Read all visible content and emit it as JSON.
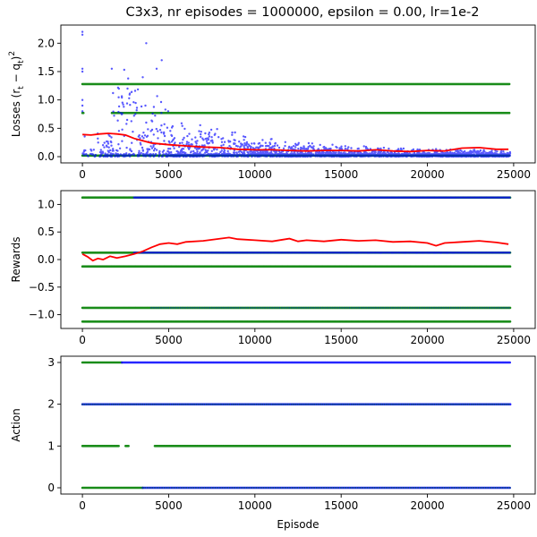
{
  "title": "C3x3, nr episodes = 1000000, epsilon = 0.00, lr=1e-2",
  "colors": {
    "blue": "#0000ff",
    "green": "#008000",
    "red": "#ff0000"
  },
  "chart_data": [
    {
      "type": "scatter",
      "name": "losses",
      "ylabel": "Losses (r_t − q_t)²",
      "ylabel_parts": {
        "main": "Losses (r",
        "sub1": "t",
        "mid": " − q",
        "sub2": "t",
        "end": ")",
        "sup": "2"
      },
      "xlim": [
        -1250,
        26250
      ],
      "ylim": [
        -0.11,
        2.32
      ],
      "xticks": [
        0,
        5000,
        10000,
        15000,
        20000,
        25000
      ],
      "xticklabels": [
        "0",
        "5000",
        "10000",
        "15000",
        "20000",
        "25000"
      ],
      "yticks": [
        0.0,
        0.5,
        1.0,
        1.5,
        2.0
      ],
      "yticklabels": [
        "0.0",
        "0.5",
        "1.0",
        "1.5",
        "2.0"
      ],
      "green_levels": [
        1.28,
        0.77,
        0.02
      ],
      "red_line": [
        [
          0,
          0.39
        ],
        [
          500,
          0.38
        ],
        [
          1000,
          0.4
        ],
        [
          1500,
          0.41
        ],
        [
          2000,
          0.4
        ],
        [
          2500,
          0.38
        ],
        [
          3000,
          0.32
        ],
        [
          3500,
          0.28
        ],
        [
          4000,
          0.24
        ],
        [
          5000,
          0.21
        ],
        [
          6000,
          0.19
        ],
        [
          7000,
          0.17
        ],
        [
          8000,
          0.16
        ],
        [
          9000,
          0.13
        ],
        [
          10000,
          0.12
        ],
        [
          11000,
          0.12
        ],
        [
          12000,
          0.11
        ],
        [
          13000,
          0.1
        ],
        [
          14000,
          0.11
        ],
        [
          15000,
          0.11
        ],
        [
          16000,
          0.1
        ],
        [
          17000,
          0.12
        ],
        [
          18000,
          0.1
        ],
        [
          19000,
          0.09
        ],
        [
          20000,
          0.11
        ],
        [
          21000,
          0.1
        ],
        [
          22000,
          0.15
        ],
        [
          23000,
          0.16
        ],
        [
          24000,
          0.13
        ],
        [
          24700,
          0.13
        ]
      ]
    },
    {
      "type": "scatter",
      "name": "rewards",
      "ylabel": "Rewards",
      "xlim": [
        -1250,
        26250
      ],
      "ylim": [
        -1.25,
        1.25
      ],
      "xticks": [
        0,
        5000,
        10000,
        15000,
        20000,
        25000
      ],
      "xticklabels": [
        "0",
        "5000",
        "10000",
        "15000",
        "20000",
        "25000"
      ],
      "yticks": [
        -1.0,
        -0.5,
        0.0,
        0.5,
        1.0
      ],
      "yticklabels": [
        "−1.0",
        "−0.5",
        "0.0",
        "0.5",
        "1.0"
      ],
      "levels": [
        1.125,
        0.125,
        -0.125,
        -0.875,
        -1.125
      ],
      "red_line": [
        [
          0,
          0.1
        ],
        [
          300,
          0.05
        ],
        [
          600,
          -0.02
        ],
        [
          900,
          0.02
        ],
        [
          1200,
          0.0
        ],
        [
          1600,
          0.06
        ],
        [
          2000,
          0.03
        ],
        [
          2500,
          0.06
        ],
        [
          3000,
          0.1
        ],
        [
          3500,
          0.15
        ],
        [
          4000,
          0.22
        ],
        [
          4500,
          0.28
        ],
        [
          5000,
          0.3
        ],
        [
          5500,
          0.28
        ],
        [
          6000,
          0.32
        ],
        [
          7000,
          0.34
        ],
        [
          8000,
          0.38
        ],
        [
          8500,
          0.4
        ],
        [
          9000,
          0.37
        ],
        [
          10000,
          0.35
        ],
        [
          11000,
          0.33
        ],
        [
          12000,
          0.38
        ],
        [
          12500,
          0.33
        ],
        [
          13000,
          0.35
        ],
        [
          14000,
          0.33
        ],
        [
          15000,
          0.36
        ],
        [
          16000,
          0.34
        ],
        [
          17000,
          0.35
        ],
        [
          18000,
          0.32
        ],
        [
          19000,
          0.33
        ],
        [
          20000,
          0.3
        ],
        [
          20500,
          0.25
        ],
        [
          21000,
          0.3
        ],
        [
          22000,
          0.32
        ],
        [
          23000,
          0.34
        ],
        [
          24000,
          0.31
        ],
        [
          24700,
          0.28
        ]
      ]
    },
    {
      "type": "scatter",
      "name": "action",
      "ylabel": "Action",
      "xlabel": "Episode",
      "xlim": [
        -1250,
        26250
      ],
      "ylim": [
        -0.15,
        3.15
      ],
      "xticks": [
        0,
        5000,
        10000,
        15000,
        20000,
        25000
      ],
      "xticklabels": [
        "0",
        "5000",
        "10000",
        "15000",
        "20000",
        "25000"
      ],
      "yticks": [
        0,
        1,
        2,
        3
      ],
      "yticklabels": [
        "0",
        "1",
        "2",
        "3"
      ],
      "levels": [
        3,
        2,
        1,
        0
      ]
    }
  ]
}
